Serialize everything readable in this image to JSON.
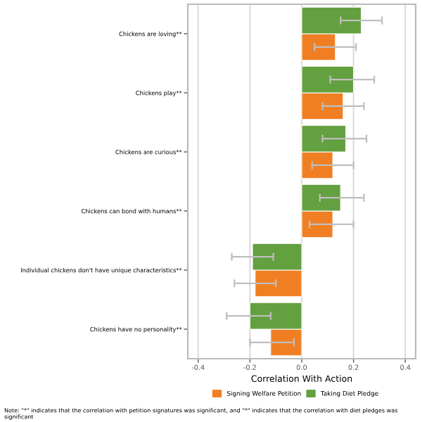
{
  "chart_data": {
    "type": "bar",
    "orientation": "horizontal",
    "categories": [
      "Chickens are loving**",
      "Chickens play**",
      "Chickens are curious**",
      "Chickens can bond with humans**",
      "Individual chickens don't have unique characteristics**",
      "Chickens have no personality**"
    ],
    "series": [
      {
        "name": "Signing Welfare Petition",
        "color": "#f07f23",
        "values": [
          0.13,
          0.16,
          0.12,
          0.12,
          -0.18,
          -0.12
        ],
        "errors": [
          [
            0.05,
            0.21
          ],
          [
            0.08,
            0.24
          ],
          [
            0.04,
            0.2
          ],
          [
            0.03,
            0.2
          ],
          [
            -0.26,
            -0.1
          ],
          [
            -0.2,
            -0.03
          ]
        ]
      },
      {
        "name": "Taking Diet Pledge",
        "color": "#63a03f",
        "values": [
          0.23,
          0.2,
          0.17,
          0.15,
          -0.19,
          -0.2
        ],
        "errors": [
          [
            0.15,
            0.31
          ],
          [
            0.11,
            0.28
          ],
          [
            0.08,
            0.25
          ],
          [
            0.07,
            0.24
          ],
          [
            -0.27,
            -0.11
          ],
          [
            -0.29,
            -0.12
          ]
        ]
      }
    ],
    "xlim": [
      -0.44,
      0.44
    ],
    "xticks": [
      -0.4,
      -0.2,
      {
        "value": 0,
        "label": "0.0"
      },
      0.2,
      0.4
    ],
    "xlabel": "Correlation With Action",
    "grid": "x",
    "legend": "bottom",
    "annotations": [
      "Note: \"*\" indicates that the correlation with petition signatures was significant, and \"*\" indicates that the correlation with diet pledges was significant"
    ]
  }
}
